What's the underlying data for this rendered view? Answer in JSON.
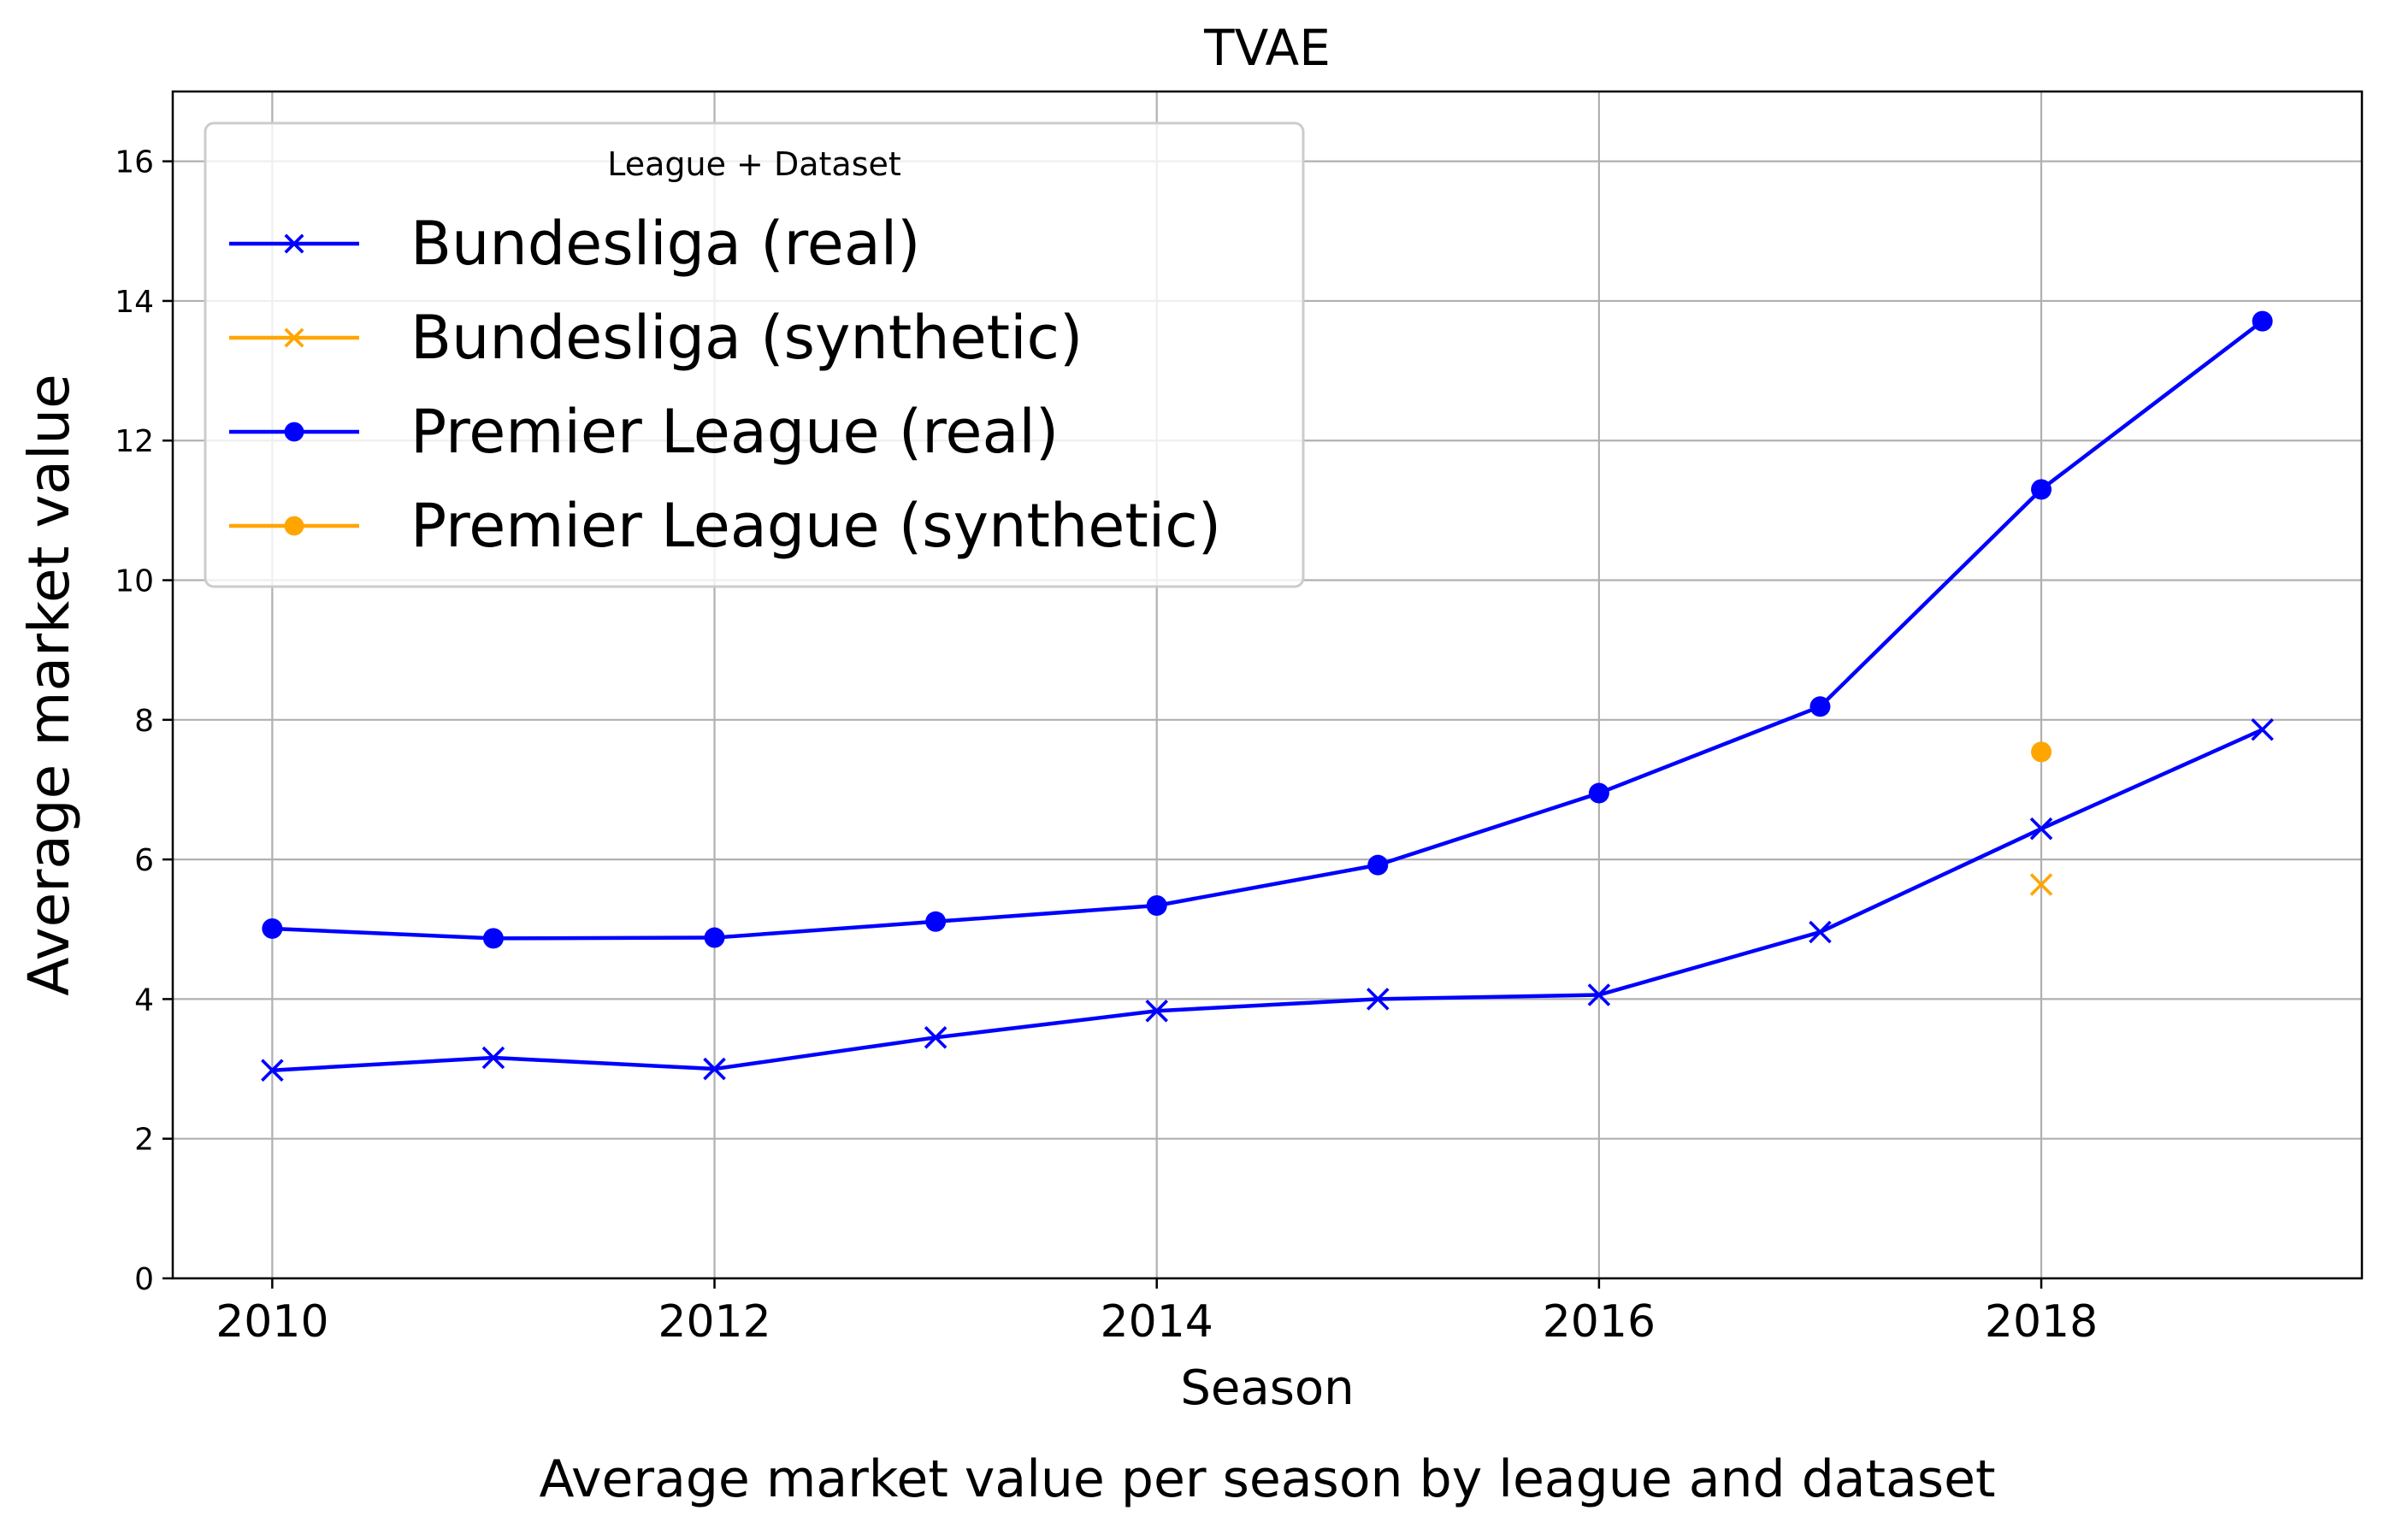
{
  "chart_data": {
    "type": "line",
    "title": "TVAE",
    "caption": "Average market value per season by league and dataset",
    "xlabel": "Season",
    "ylabel": "Average market value",
    "xlim": [
      2009.55,
      2019.45
    ],
    "ylim": [
      0,
      17
    ],
    "xticks": [
      2010,
      2012,
      2014,
      2016,
      2018
    ],
    "xtick_labels": [
      "2010",
      "2012",
      "2014",
      "2016",
      "2018"
    ],
    "yticks": [
      0,
      2,
      4,
      6,
      8,
      10,
      12,
      14,
      16
    ],
    "ytick_labels": [
      "0",
      "2",
      "4",
      "6",
      "8",
      "10",
      "12",
      "14",
      "16"
    ],
    "grid": true,
    "legend": {
      "title": "League + Dataset",
      "placement": "upper-left"
    },
    "series": [
      {
        "name": "Bundesliga (real)",
        "color": "#0000ff",
        "marker": "x",
        "x": [
          2010,
          2011,
          2012,
          2013,
          2014,
          2015,
          2016,
          2017,
          2018,
          2019
        ],
        "y": [
          2.98,
          3.16,
          3.0,
          3.45,
          3.83,
          4.0,
          4.06,
          4.96,
          6.44,
          7.86
        ]
      },
      {
        "name": "Bundesliga (synthetic)",
        "color": "#ffa500",
        "marker": "x",
        "x": [
          2018
        ],
        "y": [
          5.64
        ]
      },
      {
        "name": "Premier League (real)",
        "color": "#0000ff",
        "marker": "o",
        "x": [
          2010,
          2011,
          2012,
          2013,
          2014,
          2015,
          2016,
          2017,
          2018,
          2019
        ],
        "y": [
          5.01,
          4.87,
          4.88,
          5.11,
          5.34,
          5.92,
          6.95,
          8.19,
          11.3,
          13.71
        ]
      },
      {
        "name": "Premier League (synthetic)",
        "color": "#ffa500",
        "marker": "o",
        "x": [
          2018
        ],
        "y": [
          7.54
        ]
      }
    ]
  }
}
